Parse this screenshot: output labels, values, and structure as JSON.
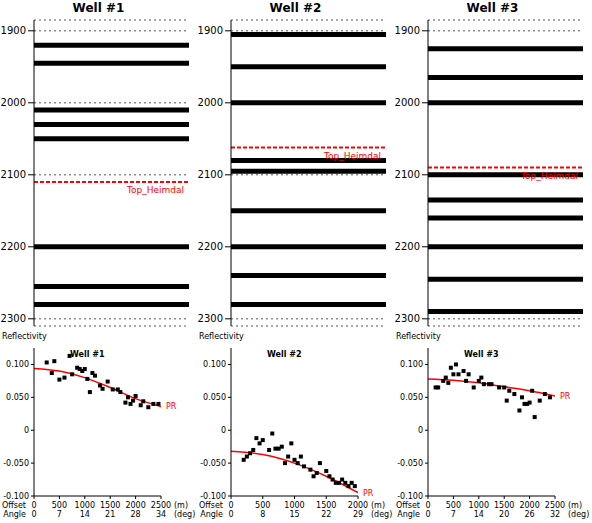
{
  "chart_data": [
    {
      "type": "seismic",
      "title": "Well #1",
      "ylim": [
        1885,
        2310
      ],
      "yticks": [
        1900,
        2000,
        2100,
        2200,
        2300
      ],
      "grid": true,
      "tick_labels": "y",
      "horizon": {
        "name": "Top_Heimdal",
        "time": 2110,
        "color": "#ff0000"
      },
      "event_times": [
        1920,
        1945,
        2010,
        2030,
        2050,
        2200,
        2255,
        2280
      ]
    },
    {
      "type": "seismic",
      "title": "Well #2",
      "ylim": [
        1885,
        2310
      ],
      "yticks": [
        1900,
        2000,
        2100,
        2200,
        2300
      ],
      "grid": true,
      "tick_labels": "y",
      "horizon": {
        "name": "Top_Heimdal",
        "time": 2062,
        "color": "#ff0000"
      },
      "event_times": [
        1905,
        1950,
        2000,
        2080,
        2095,
        2150,
        2200,
        2240,
        2280
      ]
    },
    {
      "type": "seismic",
      "title": "Well #3",
      "ylim": [
        1885,
        2310
      ],
      "yticks": [
        1900,
        2000,
        2100,
        2200,
        2300
      ],
      "grid": true,
      "tick_labels": "y",
      "horizon": {
        "name": "Top_Heimdal",
        "time": 2090,
        "color": "#ff0000"
      },
      "event_times": [
        1925,
        1965,
        2000,
        2100,
        2135,
        2160,
        2200,
        2245,
        2290
      ]
    },
    {
      "type": "scatter",
      "title": "Well #1",
      "y_label": "Reflectivity",
      "x_label": "Offset",
      "x_unit": "(m)",
      "angle_label": "Angle",
      "angle_unit": "(deg)",
      "xlim": [
        0,
        2500
      ],
      "xticks": [
        0,
        500,
        1000,
        1500,
        2000,
        2500
      ],
      "angle_ticks": [
        0,
        7,
        14,
        21,
        28,
        34
      ],
      "ylim": [
        -0.1,
        0.125
      ],
      "yticks": [
        {
          "value": -0.1,
          "label": "-0.100"
        },
        {
          "value": -0.05,
          "label": "-0.050"
        },
        0,
        {
          "value": 0.05,
          "label": "0.050"
        },
        {
          "value": 0.1,
          "label": "0.100"
        }
      ],
      "grid": false,
      "series": [
        {
          "type": "scatter",
          "color": "#000000",
          "marker": "square",
          "x": [
            250,
            350,
            400,
            500,
            600,
            700,
            750,
            850,
            900,
            950,
            1000,
            1050,
            1100,
            1150,
            1200,
            1300,
            1350,
            1450,
            1550,
            1650,
            1700,
            1800,
            1850,
            1900,
            1950,
            2000,
            2100,
            2150,
            2250,
            2350,
            2450
          ],
          "values": [
            0.103,
            0.087,
            0.105,
            0.077,
            0.08,
            0.113,
            0.085,
            0.095,
            0.093,
            0.09,
            0.093,
            0.078,
            0.058,
            0.087,
            0.083,
            0.068,
            0.063,
            0.074,
            0.062,
            0.062,
            0.058,
            0.042,
            0.05,
            0.04,
            0.045,
            0.052,
            0.038,
            0.044,
            0.035,
            0.04,
            0.04
          ]
        },
        {
          "name": "PR",
          "type": "line",
          "color": "#ff0000",
          "line_style": "solid",
          "x": [
            0,
            500,
            1000,
            1500,
            2000,
            2500
          ],
          "values": [
            0.094,
            0.09,
            0.08,
            0.065,
            0.048,
            0.036
          ]
        }
      ]
    },
    {
      "type": "scatter",
      "title": "Well #2",
      "y_label": "Reflectivity",
      "x_label": "Offset",
      "x_unit": "(m)",
      "angle_label": "Angle",
      "angle_unit": "(deg)",
      "xlim": [
        0,
        2000
      ],
      "xticks": [
        0,
        500,
        1000,
        1500,
        2000
      ],
      "angle_ticks": [
        0,
        8,
        15,
        22,
        29
      ],
      "ylim": [
        -0.1,
        0.125
      ],
      "yticks": [
        {
          "value": -0.1,
          "label": "-0.100"
        },
        {
          "value": -0.05,
          "label": "-0.050"
        },
        0,
        {
          "value": 0.05,
          "label": "0.050"
        },
        {
          "value": 0.1,
          "label": "0.100"
        }
      ],
      "grid": false,
      "series": [
        {
          "type": "scatter",
          "color": "#000000",
          "marker": "square",
          "x": [
            200,
            250,
            300,
            350,
            400,
            450,
            500,
            600,
            650,
            700,
            750,
            800,
            850,
            900,
            950,
            1000,
            1050,
            1100,
            1150,
            1250,
            1300,
            1350,
            1400,
            1500,
            1550,
            1600,
            1650,
            1700,
            1750,
            1800,
            1850,
            1900,
            1950
          ],
          "values": [
            -0.045,
            -0.04,
            -0.035,
            -0.03,
            -0.012,
            -0.02,
            -0.015,
            -0.03,
            -0.005,
            -0.028,
            -0.028,
            -0.025,
            -0.05,
            -0.04,
            -0.02,
            -0.045,
            -0.05,
            -0.04,
            -0.055,
            -0.06,
            -0.07,
            -0.065,
            -0.05,
            -0.062,
            -0.07,
            -0.075,
            -0.08,
            -0.08,
            -0.075,
            -0.08,
            -0.085,
            -0.08,
            -0.085
          ]
        },
        {
          "name": "PR",
          "type": "line",
          "color": "#ff0000",
          "line_style": "solid",
          "x": [
            0,
            500,
            1000,
            1500,
            2000
          ],
          "values": [
            -0.032,
            -0.037,
            -0.05,
            -0.07,
            -0.095
          ]
        }
      ]
    },
    {
      "type": "scatter",
      "title": "Well #3",
      "y_label": "Reflectivity",
      "x_label": "Offset",
      "x_unit": "(m)",
      "angle_label": "Angle",
      "angle_unit": "(deg)",
      "xlim": [
        0,
        2500
      ],
      "xticks": [
        0,
        500,
        1000,
        1500,
        2000,
        2500
      ],
      "angle_ticks": [
        0,
        7,
        14,
        20,
        26,
        32
      ],
      "ylim": [
        -0.1,
        0.125
      ],
      "yticks": [
        {
          "value": -0.1,
          "label": "-0.100"
        },
        {
          "value": -0.05,
          "label": "-0.050"
        },
        0,
        {
          "value": 0.05,
          "label": "0.050"
        },
        {
          "value": 0.1,
          "label": "0.100"
        }
      ],
      "grid": false,
      "series": [
        {
          "type": "scatter",
          "color": "#000000",
          "marker": "square",
          "x": [
            150,
            200,
            300,
            350,
            400,
            450,
            500,
            550,
            600,
            700,
            750,
            800,
            900,
            1000,
            1050,
            1100,
            1200,
            1250,
            1400,
            1500,
            1550,
            1600,
            1700,
            1800,
            1850,
            1900,
            1950,
            2000,
            2050,
            2100,
            2200,
            2300,
            2400
          ],
          "values": [
            0.065,
            0.065,
            0.075,
            0.08,
            0.072,
            0.095,
            0.085,
            0.1,
            0.085,
            0.09,
            0.075,
            0.085,
            0.065,
            0.075,
            0.08,
            0.07,
            0.07,
            0.07,
            0.065,
            0.065,
            0.045,
            0.06,
            0.055,
            0.03,
            0.05,
            0.04,
            0.04,
            0.042,
            0.06,
            0.02,
            0.045,
            0.055,
            0.05
          ]
        },
        {
          "name": "PR",
          "type": "line",
          "color": "#ff0000",
          "line_style": "solid",
          "x": [
            0,
            500,
            1000,
            1500,
            2000,
            2500
          ],
          "values": [
            0.078,
            0.076,
            0.072,
            0.066,
            0.06,
            0.052
          ]
        }
      ]
    }
  ]
}
